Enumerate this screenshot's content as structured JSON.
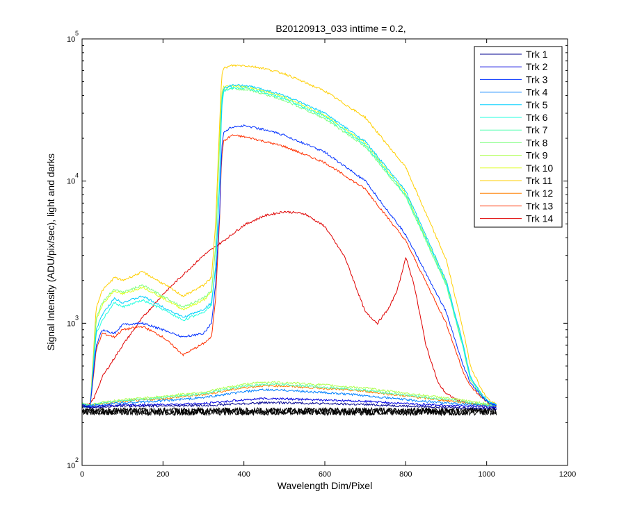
{
  "chart_data": {
    "type": "line",
    "title": "B20120913_033 inttime = 0.2,",
    "xlabel": "Wavelength Dim/Pixel",
    "ylabel": "Signal Intensity (ADU/pix/sec), light and darks",
    "xlim": [
      0,
      1200
    ],
    "ylim": [
      100,
      100000
    ],
    "yscale": "log",
    "x_ticks": [
      "0",
      "200",
      "400",
      "600",
      "800",
      "1000",
      "1200"
    ],
    "y_ticks": [
      {
        "base": "10",
        "exp": "2",
        "value": 100
      },
      {
        "base": "10",
        "exp": "3",
        "value": 1000
      },
      {
        "base": "10",
        "exp": "4",
        "value": 10000
      },
      {
        "base": "10",
        "exp": "5",
        "value": 100000
      }
    ],
    "legend_position": "top-right",
    "grid": false,
    "series": [
      {
        "name": "Trk 1",
        "color": "#00008f",
        "x": [
          0,
          20,
          50,
          100,
          200,
          300,
          400,
          450,
          500,
          600,
          700,
          800,
          900,
          1000,
          1024
        ],
        "y": [
          260,
          255,
          258,
          262,
          262,
          264,
          272,
          276,
          276,
          272,
          268,
          262,
          256,
          252,
          250
        ]
      },
      {
        "name": "Trk 2",
        "color": "#0000df",
        "x": [
          0,
          20,
          50,
          100,
          200,
          300,
          400,
          450,
          500,
          600,
          700,
          800,
          900,
          1000,
          1024
        ],
        "y": [
          265,
          258,
          262,
          266,
          268,
          272,
          290,
          295,
          294,
          288,
          282,
          272,
          264,
          258,
          255
        ]
      },
      {
        "name": "Trk 3",
        "color": "#0030ff",
        "x": [
          0,
          20,
          35,
          50,
          80,
          100,
          150,
          200,
          250,
          300,
          320,
          330,
          340,
          345,
          350,
          370,
          400,
          420,
          450,
          500,
          600,
          700,
          800,
          900,
          940,
          960,
          990,
          1010,
          1024
        ],
        "y": [
          260,
          260,
          700,
          900,
          850,
          980,
          1000,
          900,
          800,
          850,
          1000,
          1900,
          6000,
          17000,
          22000,
          24000,
          24500,
          24000,
          23000,
          21000,
          16000,
          10000,
          4200,
          1200,
          520,
          380,
          300,
          270,
          265
        ]
      },
      {
        "name": "Trk 4",
        "color": "#0080ff",
        "x": [
          0,
          20,
          50,
          100,
          200,
          300,
          400,
          450,
          500,
          600,
          700,
          800,
          900,
          1000,
          1024
        ],
        "y": [
          268,
          262,
          268,
          275,
          285,
          300,
          330,
          340,
          338,
          325,
          310,
          290,
          275,
          262,
          258
        ]
      },
      {
        "name": "Trk 5",
        "color": "#00cfff",
        "x": [
          0,
          20,
          35,
          50,
          80,
          100,
          150,
          200,
          250,
          300,
          320,
          330,
          340,
          345,
          350,
          370,
          400,
          420,
          450,
          500,
          600,
          700,
          800,
          900,
          940,
          960,
          990,
          1010,
          1024
        ],
        "y": [
          260,
          260,
          900,
          1150,
          1500,
          1400,
          1550,
          1300,
          1100,
          1250,
          1400,
          2500,
          10000,
          35000,
          45000,
          47000,
          47000,
          46000,
          44000,
          40000,
          30000,
          19000,
          8500,
          2000,
          750,
          420,
          310,
          275,
          268
        ]
      },
      {
        "name": "Trk 6",
        "color": "#20ffdf",
        "x": [
          0,
          20,
          35,
          50,
          80,
          100,
          150,
          200,
          250,
          300,
          320,
          330,
          340,
          345,
          350,
          370,
          400,
          420,
          450,
          500,
          600,
          700,
          800,
          900,
          940,
          960,
          990,
          1010,
          1024
        ],
        "y": [
          260,
          260,
          850,
          1050,
          1400,
          1300,
          1450,
          1250,
          1050,
          1200,
          1350,
          2400,
          9500,
          33000,
          43000,
          45000,
          45000,
          44000,
          42000,
          38000,
          28500,
          18000,
          8000,
          1900,
          720,
          410,
          305,
          272,
          266
        ]
      },
      {
        "name": "Trk 7",
        "color": "#50ffaf",
        "x": [
          0,
          20,
          50,
          100,
          200,
          300,
          400,
          450,
          500,
          600,
          700,
          800,
          900,
          1000,
          1024
        ],
        "y": [
          272,
          265,
          275,
          285,
          300,
          320,
          360,
          372,
          370,
          355,
          338,
          312,
          290,
          268,
          262
        ]
      },
      {
        "name": "Trk 8",
        "color": "#80ff80",
        "x": [
          0,
          20,
          35,
          50,
          80,
          100,
          150,
          200,
          250,
          300,
          320,
          330,
          340,
          345,
          350,
          370,
          400,
          420,
          450,
          500,
          600,
          700,
          800,
          900,
          940,
          960,
          990,
          1010,
          1024
        ],
        "y": [
          260,
          260,
          1100,
          1400,
          1750,
          1650,
          1850,
          1550,
          1300,
          1500,
          1700,
          3500,
          18000,
          40000,
          44000,
          45000,
          44000,
          43000,
          41000,
          37000,
          27500,
          17500,
          7800,
          1850,
          700,
          400,
          300,
          270,
          265
        ]
      },
      {
        "name": "Trk 9",
        "color": "#afff50",
        "x": [
          0,
          20,
          50,
          100,
          200,
          300,
          400,
          450,
          500,
          600,
          700,
          800,
          900,
          1000,
          1024
        ],
        "y": [
          274,
          267,
          278,
          290,
          306,
          328,
          372,
          385,
          383,
          368,
          350,
          322,
          298,
          272,
          265
        ]
      },
      {
        "name": "Trk 10",
        "color": "#dfff20",
        "x": [
          0,
          20,
          35,
          50,
          80,
          100,
          150,
          200,
          250,
          300,
          320,
          330,
          340,
          345,
          350,
          370,
          400,
          420,
          450,
          500,
          600,
          700,
          800,
          900,
          940,
          960,
          990,
          1010,
          1024
        ],
        "y": [
          260,
          260,
          1050,
          1350,
          1700,
          1600,
          1800,
          1500,
          1250,
          1450,
          1650,
          3400,
          20000,
          42000,
          46000,
          47000,
          46000,
          45000,
          43000,
          39000,
          29000,
          18500,
          8200,
          1950,
          730,
          410,
          305,
          272,
          266
        ]
      },
      {
        "name": "Trk 11",
        "color": "#ffcf00",
        "x": [
          0,
          20,
          35,
          50,
          80,
          100,
          150,
          200,
          250,
          300,
          320,
          330,
          340,
          345,
          350,
          370,
          400,
          420,
          450,
          500,
          600,
          700,
          800,
          900,
          940,
          960,
          990,
          1010,
          1024
        ],
        "y": [
          260,
          260,
          1300,
          1700,
          2100,
          2000,
          2300,
          1900,
          1550,
          1850,
          2100,
          5000,
          26000,
          55000,
          62000,
          65000,
          65000,
          64000,
          62000,
          57000,
          43000,
          28000,
          12500,
          2800,
          950,
          500,
          330,
          280,
          270
        ]
      },
      {
        "name": "Trk 12",
        "color": "#ff8000",
        "x": [
          0,
          20,
          50,
          100,
          200,
          300,
          400,
          450,
          500,
          600,
          700,
          800,
          900,
          1000,
          1024
        ],
        "y": [
          270,
          264,
          272,
          282,
          295,
          315,
          352,
          364,
          362,
          348,
          332,
          308,
          286,
          266,
          260
        ]
      },
      {
        "name": "Trk 13",
        "color": "#ff3000",
        "x": [
          0,
          20,
          35,
          50,
          80,
          100,
          150,
          200,
          250,
          300,
          320,
          330,
          340,
          345,
          350,
          370,
          400,
          420,
          450,
          500,
          600,
          700,
          800,
          900,
          940,
          960,
          990,
          1010,
          1024
        ],
        "y": [
          260,
          260,
          650,
          850,
          800,
          900,
          950,
          800,
          600,
          720,
          800,
          1500,
          5500,
          15000,
          19000,
          21000,
          20500,
          20000,
          19000,
          17500,
          13500,
          8800,
          3800,
          1000,
          470,
          360,
          295,
          268,
          262
        ]
      },
      {
        "name": "Trk 14",
        "color": "#df0000",
        "x": [
          0,
          20,
          30,
          50,
          100,
          150,
          200,
          250,
          300,
          350,
          400,
          450,
          500,
          550,
          600,
          650,
          700,
          730,
          760,
          780,
          800,
          820,
          850,
          880,
          900,
          930,
          950,
          980,
          1000,
          1024
        ],
        "y": [
          260,
          270,
          300,
          420,
          700,
          1100,
          1600,
          2200,
          3000,
          3800,
          4900,
          5700,
          6100,
          5900,
          4800,
          2900,
          1200,
          1000,
          1300,
          1750,
          2900,
          1900,
          700,
          380,
          320,
          285,
          275,
          265,
          262,
          260
        ]
      }
    ],
    "dark_frames": {
      "color": "#000000",
      "x": [
        0,
        1024
      ],
      "level": 240
    }
  }
}
